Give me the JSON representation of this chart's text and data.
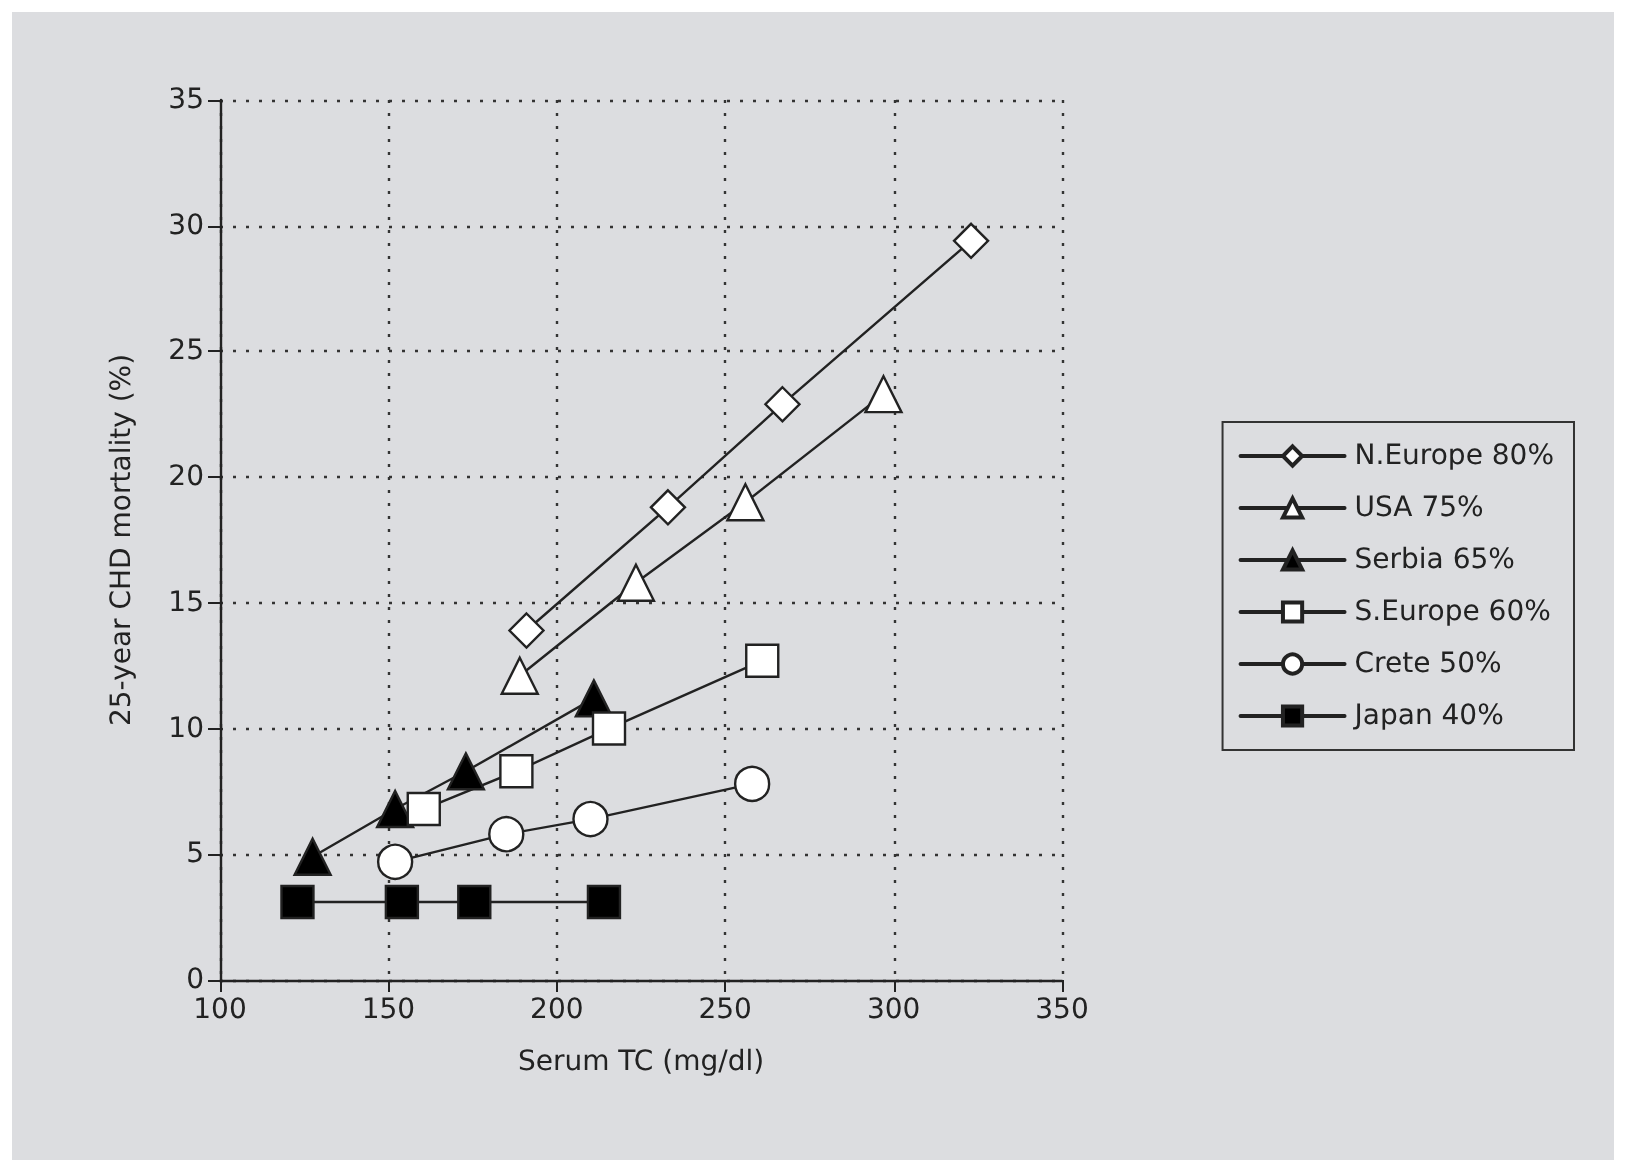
{
  "chart_data": {
    "type": "line",
    "xlabel": "Serum TC (mg/dl)",
    "ylabel": "25-year CHD mortality (%)",
    "xlim": [
      100,
      350
    ],
    "xticks": [
      100,
      150,
      200,
      250,
      300,
      350
    ],
    "ylim": [
      0,
      35
    ],
    "yticks": [
      0,
      5,
      10,
      15,
      20,
      25,
      30,
      35
    ],
    "grid": true,
    "legend": "right",
    "line_style": "solid",
    "series": [
      {
        "name": "N.Europe 80%",
        "color": "#ffffff",
        "marker": "diamond",
        "x": [
          191,
          233,
          267,
          323
        ],
        "values": [
          13.9,
          18.8,
          22.9,
          29.4
        ]
      },
      {
        "name": "USA 75%",
        "color": "#ffffff",
        "marker": "triangle",
        "x": [
          189,
          223.5,
          256,
          297
        ],
        "values": [
          12.1,
          15.8,
          19.0,
          23.3
        ]
      },
      {
        "name": "Serbia 65%",
        "color": "#000000",
        "marker": "triangle",
        "x": [
          127.5,
          152,
          173,
          211
        ],
        "values": [
          4.9,
          6.8,
          8.3,
          11.2
        ]
      },
      {
        "name": "S.Europe 60%",
        "color": "#ffffff",
        "marker": "square",
        "x": [
          160.5,
          188,
          215.5,
          261
        ],
        "values": [
          6.8,
          8.3,
          10.0,
          12.7
        ]
      },
      {
        "name": "Crete 50%",
        "color": "#ffffff",
        "marker": "circle",
        "x": [
          152,
          185,
          210,
          258
        ],
        "values": [
          4.7,
          5.8,
          6.4,
          7.8
        ]
      },
      {
        "name": "Japan 40%",
        "color": "#000000",
        "marker": "square",
        "x": [
          123,
          154,
          175.5,
          214
        ],
        "values": [
          3.1,
          3.1,
          3.1,
          3.1
        ]
      }
    ]
  }
}
